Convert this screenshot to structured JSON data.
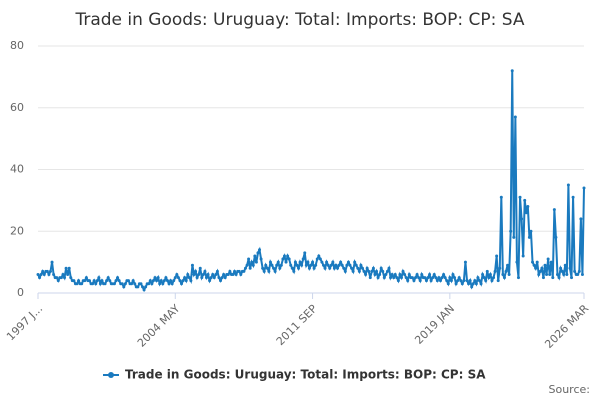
{
  "chart_data": {
    "type": "line",
    "title": "Trade in Goods: Uruguay: Total: Imports: BOP: CP: SA",
    "source": "Source:",
    "categories": [
      "1997 J...",
      null,
      null,
      null,
      null,
      null,
      null,
      null,
      null,
      null,
      null,
      null,
      null,
      null,
      null,
      null,
      null,
      null,
      null,
      null,
      null,
      null,
      null,
      null,
      null,
      null,
      null,
      null,
      null,
      null,
      null,
      null,
      null,
      null,
      null,
      null,
      null,
      null,
      null,
      null,
      null,
      null,
      null,
      null,
      null,
      null,
      null,
      null,
      null,
      null,
      null,
      null,
      null,
      null,
      null,
      null,
      null,
      null,
      null,
      null,
      null,
      null,
      null,
      null,
      null,
      null,
      null,
      null,
      null,
      null,
      null,
      null,
      null,
      null,
      null,
      null,
      null,
      null,
      null,
      null,
      null,
      null,
      null,
      null,
      null,
      null,
      null,
      null,
      "2004 MAY",
      null,
      null,
      null,
      null,
      null,
      null,
      null,
      null,
      null,
      null,
      null,
      null,
      null,
      null,
      null,
      null,
      null,
      null,
      null,
      null,
      null,
      null,
      null,
      null,
      null,
      null,
      null,
      null,
      null,
      null,
      null,
      null,
      null,
      null,
      null,
      null,
      null,
      null,
      null,
      null,
      null,
      null,
      null,
      null,
      null,
      null,
      null,
      null,
      null,
      null,
      null,
      null,
      null,
      null,
      null,
      null,
      null,
      null,
      null,
      null,
      null,
      null,
      null,
      null,
      null,
      null,
      null,
      null,
      null,
      null,
      null,
      null,
      null,
      null,
      null,
      null,
      null,
      null,
      null,
      null,
      null,
      null,
      null,
      null,
      null,
      null,
      null,
      "2011 SEP",
      null,
      null,
      null,
      null,
      null,
      null,
      null,
      null,
      null,
      null,
      null,
      null,
      null,
      null,
      null,
      null,
      null,
      null,
      null,
      null,
      null,
      null,
      null,
      null,
      null,
      null,
      null,
      null,
      null,
      null,
      null,
      null,
      null,
      null,
      null,
      null,
      null,
      null,
      null,
      null,
      null,
      null,
      null,
      null,
      null,
      null,
      null,
      null,
      null,
      null,
      null,
      null,
      null,
      null,
      null,
      null,
      null,
      null,
      null,
      null,
      null,
      null,
      null,
      null,
      null,
      null,
      null,
      null,
      null,
      null,
      null,
      null,
      null,
      null,
      null,
      null,
      null,
      null,
      null,
      null,
      null,
      null,
      null,
      null,
      null,
      null,
      null,
      "2019 JAN",
      null,
      null,
      null,
      null,
      null,
      null,
      null,
      null,
      null,
      null,
      null,
      null,
      null,
      null,
      null,
      null,
      null,
      null,
      null,
      null,
      null,
      null,
      null,
      null,
      null,
      null,
      null,
      null,
      null,
      null,
      null,
      null,
      null,
      null,
      null,
      null,
      null,
      null,
      null,
      null,
      null,
      null,
      null,
      null,
      null,
      null,
      null,
      null,
      null,
      null,
      null,
      null,
      null,
      null,
      null,
      null,
      null,
      null,
      null,
      null,
      null,
      null,
      null,
      null,
      null,
      null,
      null,
      null,
      null,
      null,
      null,
      null,
      null,
      null,
      null,
      null,
      null,
      null,
      null,
      null,
      null,
      null,
      null,
      null,
      null,
      "2026 MAR"
    ],
    "series": [
      {
        "name": "Trade in Goods: Uruguay: Total: Imports: BOP: CP: SA",
        "color": "#1a7abf",
        "values": [
          6,
          5,
          6,
          7,
          6,
          7,
          7,
          6,
          7,
          10,
          6,
          5,
          5,
          4,
          5,
          5,
          6,
          5,
          8,
          6,
          8,
          5,
          4,
          4,
          3,
          3,
          4,
          3,
          3,
          4,
          4,
          5,
          4,
          4,
          3,
          3,
          4,
          3,
          4,
          5,
          3,
          4,
          3,
          3,
          4,
          5,
          4,
          3,
          3,
          3,
          4,
          5,
          4,
          3,
          3,
          2,
          3,
          4,
          4,
          3,
          3,
          4,
          3,
          2,
          2,
          3,
          3,
          2,
          1,
          2,
          3,
          3,
          4,
          3,
          4,
          5,
          4,
          5,
          3,
          4,
          3,
          4,
          5,
          4,
          3,
          4,
          3,
          4,
          5,
          6,
          5,
          4,
          3,
          4,
          5,
          4,
          6,
          5,
          4,
          9,
          6,
          7,
          5,
          6,
          8,
          5,
          6,
          7,
          5,
          6,
          4,
          5,
          6,
          5,
          6,
          7,
          5,
          4,
          5,
          6,
          5,
          6,
          6,
          7,
          6,
          6,
          7,
          6,
          7,
          7,
          6,
          7,
          7,
          8,
          9,
          11,
          8,
          10,
          9,
          12,
          10,
          13,
          14,
          11,
          8,
          7,
          9,
          8,
          7,
          10,
          9,
          8,
          7,
          9,
          10,
          8,
          9,
          11,
          12,
          10,
          12,
          11,
          9,
          8,
          7,
          10,
          9,
          8,
          10,
          9,
          11,
          13,
          9,
          10,
          8,
          9,
          10,
          8,
          9,
          11,
          12,
          11,
          10,
          9,
          8,
          10,
          9,
          8,
          9,
          10,
          8,
          9,
          8,
          9,
          10,
          9,
          8,
          7,
          9,
          10,
          9,
          8,
          7,
          10,
          9,
          8,
          7,
          9,
          8,
          7,
          6,
          8,
          7,
          5,
          7,
          8,
          6,
          7,
          5,
          6,
          8,
          7,
          5,
          6,
          7,
          8,
          5,
          6,
          5,
          6,
          5,
          4,
          6,
          5,
          7,
          6,
          5,
          4,
          6,
          5,
          5,
          4,
          5,
          6,
          5,
          4,
          6,
          5,
          5,
          4,
          5,
          6,
          4,
          5,
          6,
          5,
          4,
          5,
          4,
          5,
          6,
          5,
          4,
          3,
          5,
          4,
          6,
          5,
          3,
          4,
          5,
          4,
          3,
          4,
          10,
          4,
          3,
          4,
          2,
          3,
          4,
          3,
          5,
          4,
          3,
          6,
          5,
          4,
          7,
          5,
          6,
          4,
          5,
          7,
          12,
          4,
          8,
          31,
          6,
          5,
          7,
          9,
          6,
          20,
          72,
          18,
          57,
          10,
          5,
          31,
          24,
          12,
          30,
          26,
          28,
          18,
          20,
          10,
          9,
          8,
          10,
          6,
          7,
          8,
          5,
          9,
          6,
          11,
          6,
          10,
          5,
          27,
          18,
          6,
          5,
          8,
          7,
          6,
          9,
          6,
          35,
          8,
          5,
          31,
          7,
          6,
          6,
          7,
          24,
          6,
          34
        ]
      }
    ],
    "ylim": [
      0,
      80
    ],
    "yticks": [
      0,
      20,
      40,
      60,
      80
    ],
    "grid": true,
    "legend": "bottom"
  }
}
